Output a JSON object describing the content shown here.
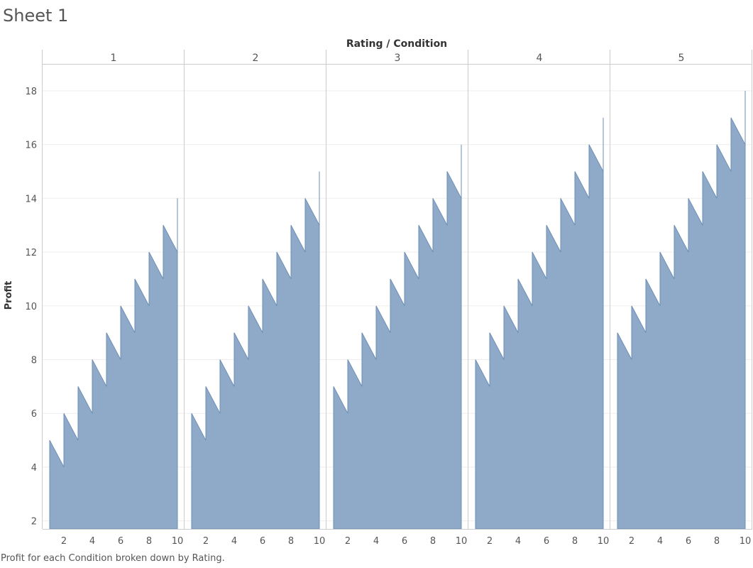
{
  "sheet_title": "Sheet 1",
  "caption": "Profit for each Condition broken down by Rating.",
  "colors": {
    "area_fill": "#8eaac8",
    "area_stroke": "#6f8fb5",
    "grid": "#eeeeee",
    "divider": "#cccccc",
    "text": "#555555"
  },
  "chart_data": {
    "type": "area",
    "title": "",
    "column_header": "Rating / Condition",
    "ylabel": "Profit",
    "ylim": [
      1.7,
      19
    ],
    "yticks": [
      2,
      4,
      6,
      8,
      10,
      12,
      14,
      16,
      18
    ],
    "xlim": [
      0.5,
      10.5
    ],
    "xticks": [
      2,
      4,
      6,
      8,
      10
    ],
    "grid": true,
    "panels": [
      {
        "rating": "1",
        "points": [
          [
            1,
            5
          ],
          [
            2,
            4
          ],
          [
            2,
            6
          ],
          [
            3,
            5
          ],
          [
            3,
            7
          ],
          [
            4,
            6
          ],
          [
            4,
            8
          ],
          [
            5,
            7
          ],
          [
            5,
            9
          ],
          [
            6,
            8
          ],
          [
            6,
            10
          ],
          [
            7,
            9
          ],
          [
            7,
            11
          ],
          [
            8,
            10
          ],
          [
            8,
            12
          ],
          [
            9,
            11
          ],
          [
            9,
            13
          ],
          [
            10,
            12
          ],
          [
            10,
            14
          ]
        ]
      },
      {
        "rating": "2",
        "points": [
          [
            1,
            6
          ],
          [
            2,
            5
          ],
          [
            2,
            7
          ],
          [
            3,
            6
          ],
          [
            3,
            8
          ],
          [
            4,
            7
          ],
          [
            4,
            9
          ],
          [
            5,
            8
          ],
          [
            5,
            10
          ],
          [
            6,
            9
          ],
          [
            6,
            11
          ],
          [
            7,
            10
          ],
          [
            7,
            12
          ],
          [
            8,
            11
          ],
          [
            8,
            13
          ],
          [
            9,
            12
          ],
          [
            9,
            14
          ],
          [
            10,
            13
          ],
          [
            10,
            15
          ]
        ]
      },
      {
        "rating": "3",
        "points": [
          [
            1,
            7
          ],
          [
            2,
            6
          ],
          [
            2,
            8
          ],
          [
            3,
            7
          ],
          [
            3,
            9
          ],
          [
            4,
            8
          ],
          [
            4,
            10
          ],
          [
            5,
            9
          ],
          [
            5,
            11
          ],
          [
            6,
            10
          ],
          [
            6,
            12
          ],
          [
            7,
            11
          ],
          [
            7,
            13
          ],
          [
            8,
            12
          ],
          [
            8,
            14
          ],
          [
            9,
            13
          ],
          [
            9,
            15
          ],
          [
            10,
            14
          ],
          [
            10,
            16
          ]
        ]
      },
      {
        "rating": "4",
        "points": [
          [
            1,
            8
          ],
          [
            2,
            7
          ],
          [
            2,
            9
          ],
          [
            3,
            8
          ],
          [
            3,
            10
          ],
          [
            4,
            9
          ],
          [
            4,
            11
          ],
          [
            5,
            10
          ],
          [
            5,
            12
          ],
          [
            6,
            11
          ],
          [
            6,
            13
          ],
          [
            7,
            12
          ],
          [
            7,
            14
          ],
          [
            8,
            13
          ],
          [
            8,
            15
          ],
          [
            9,
            14
          ],
          [
            9,
            16
          ],
          [
            10,
            15
          ],
          [
            10,
            17
          ]
        ]
      },
      {
        "rating": "5",
        "points": [
          [
            1,
            9
          ],
          [
            2,
            8
          ],
          [
            2,
            10
          ],
          [
            3,
            9
          ],
          [
            3,
            11
          ],
          [
            4,
            10
          ],
          [
            4,
            12
          ],
          [
            5,
            11
          ],
          [
            5,
            13
          ],
          [
            6,
            12
          ],
          [
            6,
            14
          ],
          [
            7,
            13
          ],
          [
            7,
            15
          ],
          [
            8,
            14
          ],
          [
            8,
            16
          ],
          [
            9,
            15
          ],
          [
            9,
            17
          ],
          [
            10,
            16
          ],
          [
            10,
            18
          ]
        ]
      }
    ]
  }
}
